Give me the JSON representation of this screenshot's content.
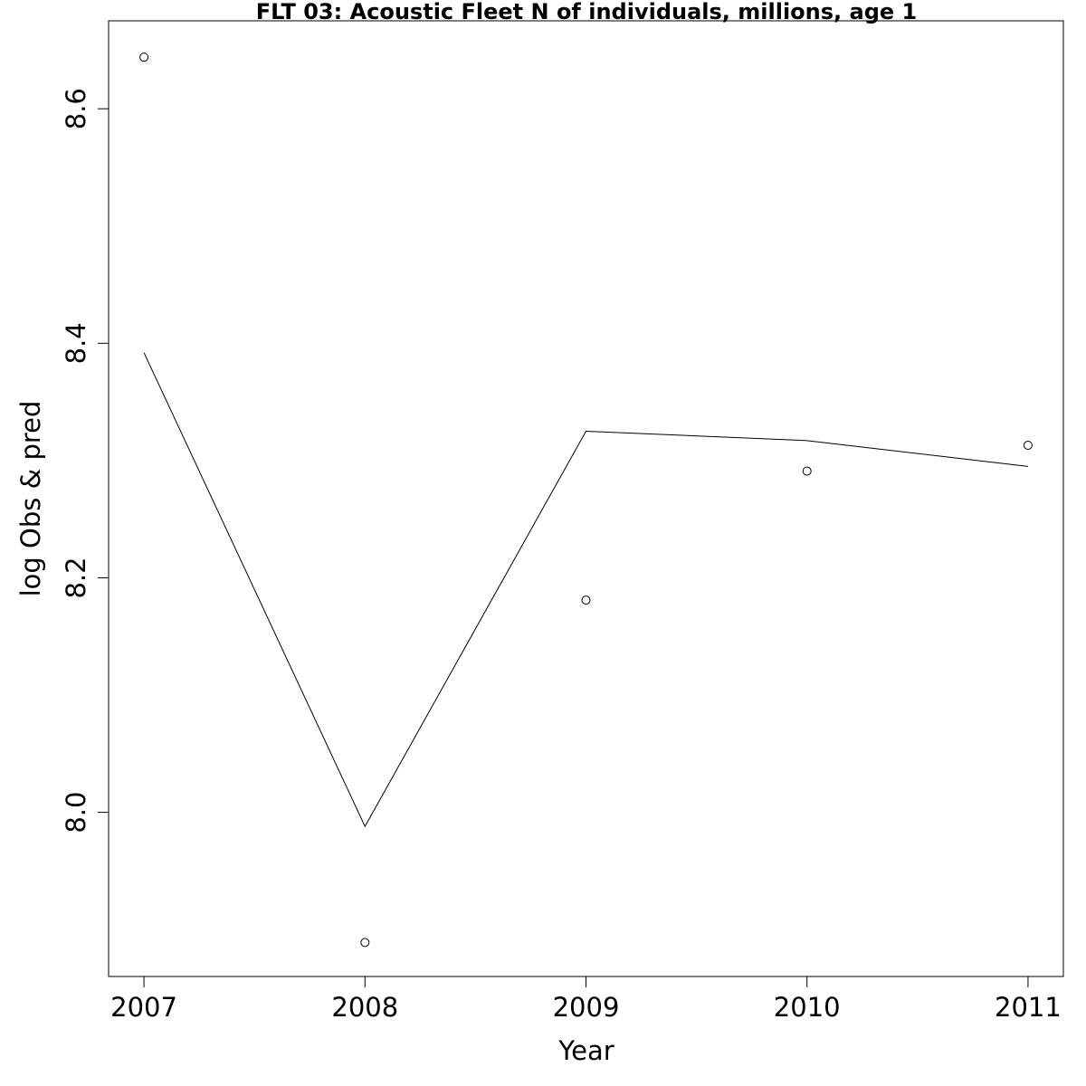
{
  "chart_data": {
    "type": "line",
    "title": "FLT 03: Acoustic Fleet  N of individuals, millions, age 1",
    "xlabel": "Year",
    "ylabel": "log Obs & pred",
    "x": [
      2007,
      2008,
      2009,
      2010,
      2011
    ],
    "x_tick_labels": [
      "2007",
      "2008",
      "2009",
      "2010",
      "2011"
    ],
    "y_ticks": [
      8.0,
      8.2,
      8.4,
      8.6
    ],
    "y_tick_labels": [
      "8.0",
      "8.2",
      "8.4",
      "8.6"
    ],
    "xlim": [
      2006.84,
      2011.16
    ],
    "ylim": [
      7.86,
      8.675
    ],
    "grid": false,
    "colors": {
      "observed": "#000000",
      "predicted": "#000000"
    },
    "series": [
      {
        "kind": "points",
        "marker": "open-circle",
        "values": [
          8.644,
          7.889,
          8.181,
          8.291,
          8.313
        ]
      },
      {
        "kind": "line",
        "values": [
          8.392,
          7.988,
          8.325,
          8.317,
          8.295
        ]
      }
    ]
  }
}
